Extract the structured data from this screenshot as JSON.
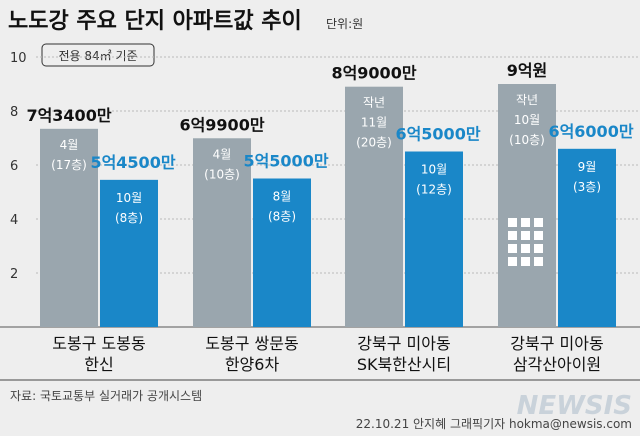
{
  "title": "노도강 주요 단지 아파트값 추이",
  "unit_label": "단위:원",
  "condition_note": "전용 84㎡ 기준",
  "source": "자료: 국토교통부 실거래가 공개시스템",
  "credit": "22.10.21 안지혜 그래픽기자 hokma@newsis.com",
  "brand": "NEWSIS",
  "colors": {
    "background": "#eeeeee",
    "past_bar": "#9aa6ae",
    "recent_bar": "#1a87c8",
    "recent_label": "#1a87c8"
  },
  "chart_data": {
    "type": "bar",
    "ylim": [
      0,
      10
    ],
    "yticks": [
      2,
      4,
      6,
      8,
      10
    ],
    "grid": true,
    "categories": [
      [
        "도봉구 도봉동",
        "한신"
      ],
      [
        "도봉구 쌍문동",
        "한양6차"
      ],
      [
        "강북구 미아동",
        "SK북한산시티"
      ],
      [
        "강북구 미아동",
        "삼각산아이원"
      ]
    ],
    "series": [
      {
        "role": "past",
        "values": [
          7.34,
          6.99,
          8.9,
          9.0
        ],
        "value_labels": [
          "7억3400만",
          "6억9900만",
          "8억9000만",
          "9억원"
        ],
        "bar_text": [
          [
            "4월",
            "(17층)"
          ],
          [
            "4월",
            "(10층)"
          ],
          [
            "작년",
            "11월",
            "(20층)"
          ],
          [
            "작년",
            "10월",
            "(10층)"
          ]
        ]
      },
      {
        "role": "recent",
        "values": [
          5.45,
          5.5,
          6.5,
          6.6
        ],
        "value_labels": [
          "5억4500만",
          "5억5000만",
          "6억5000만",
          "6억6000만"
        ],
        "bar_text": [
          [
            "10월",
            "(8층)"
          ],
          [
            "8월",
            "(8층)"
          ],
          [
            "10월",
            "(12층)"
          ],
          [
            "9월",
            "(3층)"
          ]
        ]
      }
    ]
  }
}
